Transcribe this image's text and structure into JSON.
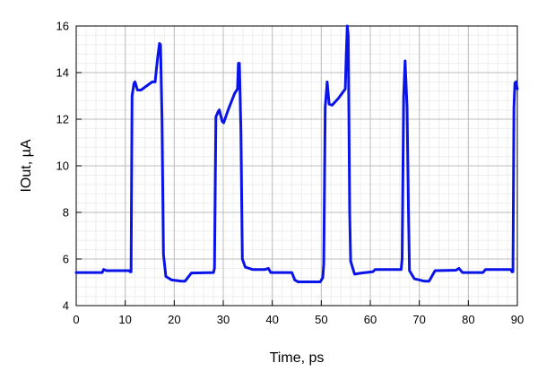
{
  "chart_data": {
    "type": "line",
    "title": "",
    "xlabel": "Time, ps",
    "ylabel": "IOut, µA",
    "xlim": [
      0,
      90
    ],
    "ylim": [
      4,
      16
    ],
    "xticks": [
      "0",
      "10",
      "20",
      "30",
      "40",
      "50",
      "60",
      "70",
      "80",
      "90"
    ],
    "yticks": [
      "4",
      "6",
      "8",
      "10",
      "12",
      "14",
      "16"
    ],
    "x_minor_step": 2,
    "y_minor_step": 0.4,
    "grid": true,
    "legend": "none",
    "series": [
      {
        "color": "#0a14e8",
        "points": [
          [
            0,
            5.42
          ],
          [
            5.3,
            5.42
          ],
          [
            5.6,
            5.55
          ],
          [
            6.2,
            5.5
          ],
          [
            10.8,
            5.5
          ],
          [
            11.0,
            5.45
          ],
          [
            11.2,
            5.45
          ],
          [
            11.4,
            13.0
          ],
          [
            11.8,
            13.55
          ],
          [
            12.0,
            13.6
          ],
          [
            12.5,
            13.25
          ],
          [
            13.2,
            13.25
          ],
          [
            15.5,
            13.6
          ],
          [
            16.1,
            13.6
          ],
          [
            16.6,
            14.6
          ],
          [
            17.0,
            15.25
          ],
          [
            17.2,
            15.2
          ],
          [
            17.5,
            12.0
          ],
          [
            17.8,
            6.2
          ],
          [
            18.3,
            5.25
          ],
          [
            19.5,
            5.1
          ],
          [
            21.5,
            5.05
          ],
          [
            22.2,
            5.05
          ],
          [
            23.5,
            5.4
          ],
          [
            28.0,
            5.42
          ],
          [
            28.2,
            5.6
          ],
          [
            28.5,
            12.1
          ],
          [
            28.9,
            12.3
          ],
          [
            29.2,
            12.4
          ],
          [
            29.8,
            11.9
          ],
          [
            30.1,
            11.85
          ],
          [
            31.0,
            12.4
          ],
          [
            32.3,
            13.1
          ],
          [
            32.9,
            13.3
          ],
          [
            33.1,
            14.4
          ],
          [
            33.3,
            14.4
          ],
          [
            33.6,
            11.5
          ],
          [
            33.9,
            6.0
          ],
          [
            34.5,
            5.65
          ],
          [
            36.0,
            5.55
          ],
          [
            38.5,
            5.55
          ],
          [
            39.2,
            5.6
          ],
          [
            39.7,
            5.42
          ],
          [
            44.0,
            5.42
          ],
          [
            44.6,
            5.1
          ],
          [
            45.3,
            5.02
          ],
          [
            49.8,
            5.02
          ],
          [
            50.3,
            5.2
          ],
          [
            50.5,
            5.8
          ],
          [
            50.8,
            12.5
          ],
          [
            51.2,
            13.6
          ],
          [
            51.6,
            12.65
          ],
          [
            52.2,
            12.6
          ],
          [
            53.5,
            12.9
          ],
          [
            54.9,
            13.3
          ],
          [
            55.1,
            14.8
          ],
          [
            55.3,
            16.0
          ],
          [
            55.5,
            15.6
          ],
          [
            55.8,
            8.0
          ],
          [
            56.0,
            5.9
          ],
          [
            56.8,
            5.35
          ],
          [
            58.2,
            5.4
          ],
          [
            60.5,
            5.45
          ],
          [
            61.0,
            5.55
          ],
          [
            66.3,
            5.55
          ],
          [
            66.5,
            6.0
          ],
          [
            66.8,
            13.0
          ],
          [
            67.1,
            14.5
          ],
          [
            67.5,
            12.5
          ],
          [
            67.8,
            8.0
          ],
          [
            68.0,
            5.5
          ],
          [
            69.0,
            5.15
          ],
          [
            71.0,
            5.05
          ],
          [
            72.0,
            5.05
          ],
          [
            73.2,
            5.5
          ],
          [
            77.5,
            5.52
          ],
          [
            78.1,
            5.6
          ],
          [
            78.8,
            5.42
          ],
          [
            83.0,
            5.42
          ],
          [
            83.5,
            5.55
          ],
          [
            88.7,
            5.55
          ],
          [
            88.9,
            5.45
          ],
          [
            89.1,
            5.45
          ],
          [
            89.3,
            12.5
          ],
          [
            89.5,
            13.55
          ],
          [
            89.7,
            13.6
          ],
          [
            90.0,
            13.3
          ]
        ]
      }
    ]
  }
}
